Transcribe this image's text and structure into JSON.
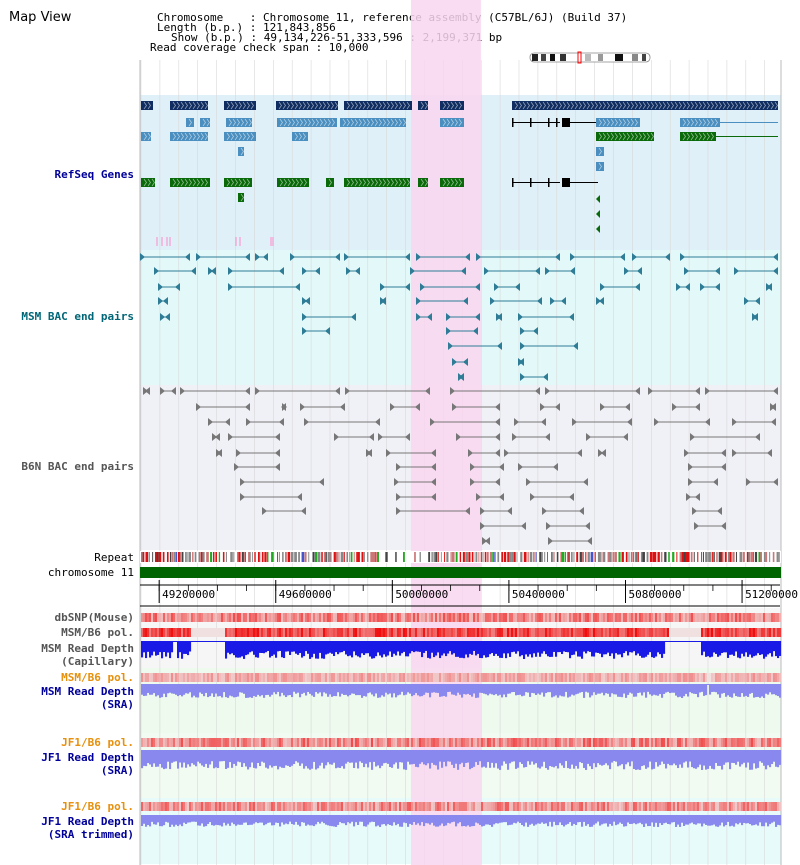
{
  "title": "Map View",
  "header": {
    "chromosome_line": "Chromosome    : Chromosome 11, reference assembly (C57BL/6J) (Build 37)",
    "length_line": "Length (b.p.) : 121,843,856",
    "show_line": "Show (b.p.) : 49,134,226-51,333,596 : 2,199,371 bp",
    "coverage_line": "Read coverage check span : 10,000"
  },
  "tracks": {
    "refseq": "RefSeq Genes",
    "msm_bac": "MSM BAC end pairs",
    "b6n_bac": "B6N BAC end pairs",
    "repeat": "Repeat",
    "chromosome": "chromosome 11",
    "dbsnp": "dbSNP(Mouse)",
    "msm_b6_pol_1": "MSM/B6 pol.",
    "msm_depth_cap_1": "MSM Read Depth",
    "msm_depth_cap_2": "(Capillary)",
    "msm_b6_pol_2": "MSM/B6 pol.",
    "msm_depth_sra_1": "MSM Read Depth",
    "msm_depth_sra_2": "(SRA)",
    "jf1_pol_1": "JF1/B6 pol.",
    "jf1_depth_1": "JF1 Read Depth",
    "jf1_depth_2": "(SRA)",
    "jf1_pol_2": "JF1/B6 pol.",
    "jf1_trim_1": "JF1 Read Depth",
    "jf1_trim_2": "(SRA trimmed)"
  },
  "axis": {
    "ticks": [
      "49200000",
      "49600000",
      "50000000",
      "50400000",
      "50800000",
      "51200000"
    ],
    "tick_values": [
      49200000,
      49600000,
      50000000,
      50400000,
      50800000,
      51200000
    ],
    "range": [
      49134226,
      51333596
    ]
  },
  "selection_range": [
    50064000,
    50304000
  ],
  "colors": {
    "refseq_dark": "#0f2d61",
    "refseq_mid": "#4a8fc0",
    "refseq_green": "#0a6a0a",
    "refseq_bg": "#dff0f8",
    "msm_bg": "#e3f9f9",
    "b6n_bg": "#f0f0f7",
    "highlight": "#f9d6f0",
    "chrom_bar": "#006400",
    "depth_dark": "#1a1ae6",
    "depth_light": "#8888ee"
  }
}
